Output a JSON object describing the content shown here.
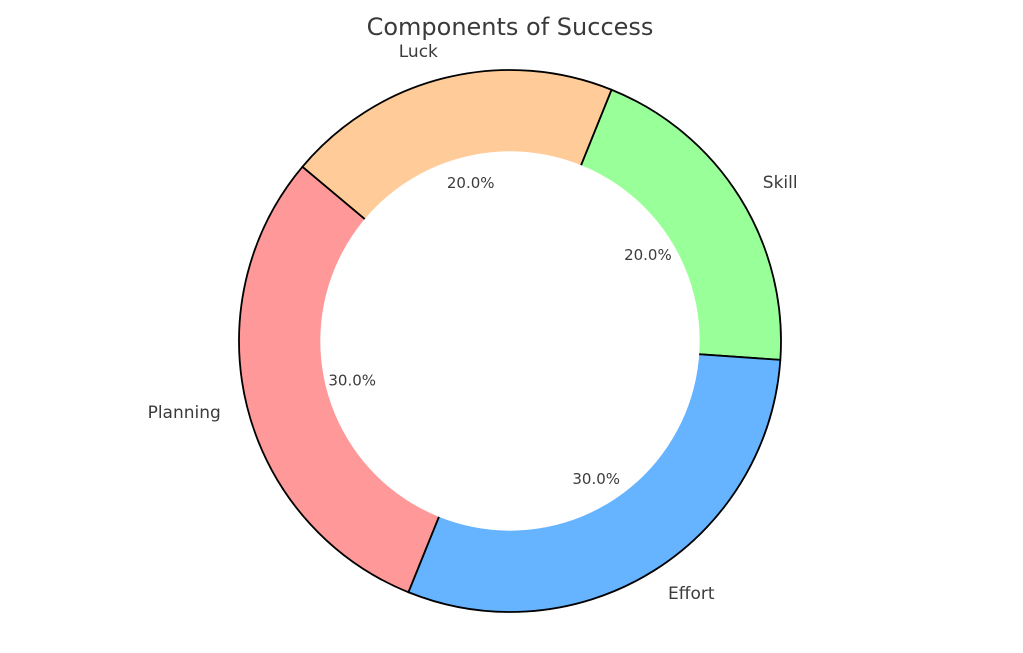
{
  "title": "Components of Success",
  "colors": {
    "background": "#ffffff",
    "text": "#3b3b3b",
    "title_text": "#3a3a3a",
    "wedge_edge": "#000000",
    "hole_fill": "#ffffff"
  },
  "chart_data": {
    "type": "pie",
    "subtype": "donut",
    "title": "Components of Success",
    "legend": "none",
    "direction": "counterclockwise",
    "start_angle_deg": -4,
    "inner_radius_ratio": 0.7,
    "pct_distance_ratio": 0.6,
    "label_distance_ratio": 1.1,
    "segments": [
      {
        "label": "Skill",
        "value": 20,
        "pct_label": "20.0%",
        "color": "#99ff99"
      },
      {
        "label": "Luck",
        "value": 20,
        "pct_label": "20.0%",
        "color": "#ffcc99"
      },
      {
        "label": "Planning",
        "value": 30,
        "pct_label": "30.0%",
        "color": "#ff9999"
      },
      {
        "label": "Effort",
        "value": 30,
        "pct_label": "30.0%",
        "color": "#66b3ff"
      }
    ]
  }
}
